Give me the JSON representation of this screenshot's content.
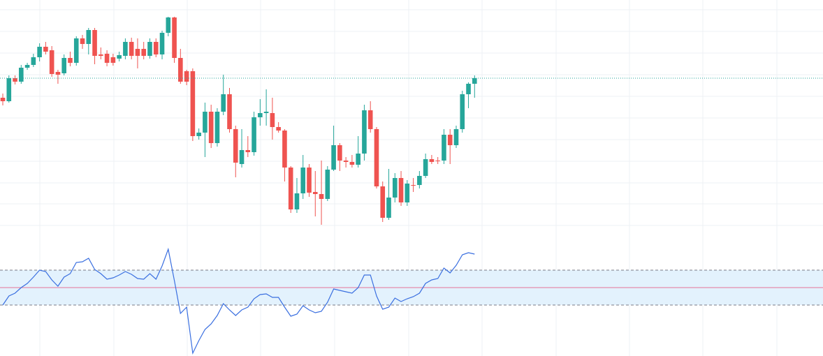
{
  "chart_data": [
    {
      "type": "candlestick",
      "up_color": "#26a69a",
      "down_color": "#ef5350",
      "ylim": [
        0,
        340
      ],
      "yticks": [
        17,
        48,
        78,
        109,
        140,
        171,
        202,
        233,
        264,
        295,
        326
      ],
      "grid": true,
      "open": [
        200,
        195,
        228,
        223,
        243,
        247,
        258,
        273,
        268,
        237,
        235,
        257,
        250,
        285,
        277,
        297,
        262,
        263,
        258,
        256,
        260,
        280,
        270,
        270,
        260,
        280,
        262,
        293,
        315,
        257,
        238,
        238,
        145,
        150,
        180,
        135,
        180,
        205,
        155,
        105,
        125,
        122,
        172,
        178,
        178,
        158,
        153,
        100,
        40,
        63,
        100,
        65,
        62,
        55,
        97,
        132,
        110,
        108,
        104,
        120,
        182,
        155,
        73,
        28,
        57,
        85,
        50,
        75,
        75,
        88,
        112,
        110,
        110,
        147,
        132,
        155,
        205,
        220
      ],
      "high": [
        206,
        232,
        232,
        247,
        250,
        263,
        278,
        280,
        274,
        240,
        262,
        266,
        288,
        290,
        300,
        300,
        272,
        268,
        263,
        266,
        285,
        286,
        285,
        280,
        285,
        285,
        296,
        316,
        316,
        270,
        240,
        242,
        156,
        193,
        190,
        185,
        233,
        214,
        160,
        155,
        145,
        180,
        198,
        212,
        200,
        165,
        155,
        102,
        85,
        118,
        105,
        95,
        110,
        102,
        160,
        135,
        115,
        118,
        145,
        190,
        195,
        158,
        80,
        98,
        92,
        95,
        82,
        85,
        95,
        120,
        118,
        115,
        155,
        155,
        160,
        210,
        222,
        232
      ],
      "low": [
        189,
        193,
        219,
        220,
        240,
        244,
        252,
        262,
        230,
        220,
        232,
        245,
        246,
        270,
        262,
        248,
        255,
        245,
        246,
        252,
        255,
        255,
        242,
        255,
        256,
        258,
        255,
        288,
        250,
        220,
        218,
        138,
        140,
        115,
        128,
        130,
        175,
        150,
        86,
        100,
        115,
        117,
        160,
        160,
        140,
        150,
        80,
        35,
        35,
        55,
        58,
        30,
        18,
        52,
        95,
        95,
        100,
        100,
        100,
        110,
        150,
        70,
        22,
        25,
        50,
        45,
        45,
        65,
        70,
        85,
        105,
        105,
        105,
        105,
        128,
        150,
        185,
        200
      ],
      "close": [
        195,
        228,
        223,
        243,
        247,
        258,
        273,
        266,
        234,
        233,
        257,
        250,
        285,
        277,
        297,
        260,
        260,
        250,
        250,
        261,
        280,
        260,
        260,
        260,
        280,
        262,
        293,
        315,
        257,
        223,
        223,
        145,
        150,
        180,
        135,
        180,
        205,
        155,
        107,
        125,
        122,
        172,
        178,
        180,
        158,
        153,
        100,
        40,
        63,
        100,
        64,
        62,
        55,
        97,
        132,
        110,
        108,
        104,
        120,
        182,
        155,
        73,
        28,
        57,
        85,
        50,
        77,
        74,
        88,
        112,
        108,
        109,
        147,
        132,
        155,
        205,
        220,
        228
      ]
    },
    {
      "type": "line",
      "ylim": [
        -392,
        288
      ],
      "bands": [
        -100,
        100
      ],
      "center": 0,
      "band_color": "#e3f2fd",
      "center_color": "#e57399",
      "series": [
        {
          "color": "#3a6fe0",
          "values": [
            -100,
            -48,
            -32,
            0,
            24,
            60,
            100,
            92,
            44,
            8,
            60,
            80,
            144,
            148,
            168,
            104,
            80,
            48,
            56,
            72,
            92,
            76,
            52,
            48,
            80,
            48,
            124,
            220,
            40,
            -148,
            -112,
            -376,
            -304,
            -240,
            -208,
            -160,
            -92,
            -128,
            -160,
            -128,
            -112,
            -64,
            -40,
            -36,
            -56,
            -56,
            -112,
            -164,
            -152,
            -104,
            -128,
            -144,
            -136,
            -84,
            -8,
            -16,
            -24,
            -32,
            0,
            72,
            72,
            -48,
            -124,
            -112,
            -60,
            -80,
            -64,
            -52,
            -32,
            24,
            44,
            52,
            112,
            84,
            128,
            188,
            200,
            192
          ]
        }
      ]
    }
  ]
}
